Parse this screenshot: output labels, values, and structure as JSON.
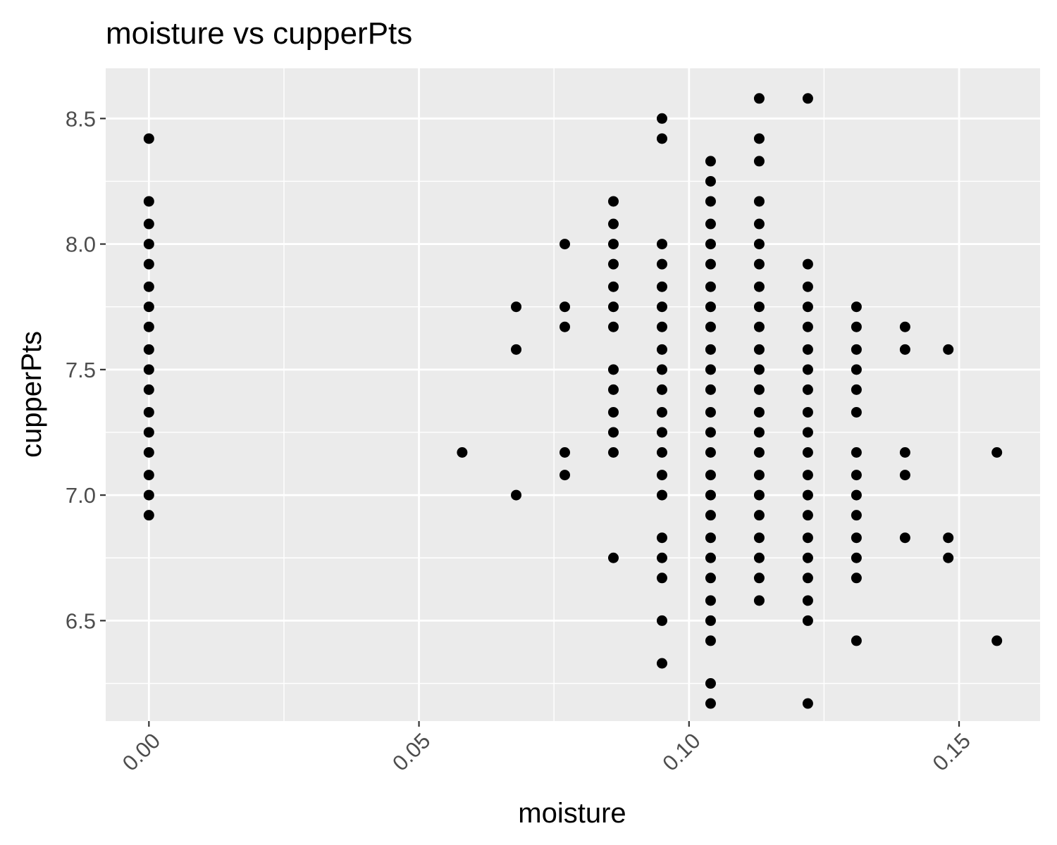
{
  "chart_data": {
    "type": "scatter",
    "title": "moisture vs cupperPts",
    "xlabel": "moisture",
    "ylabel": "cupperPts",
    "xlim": [
      -0.008,
      0.165
    ],
    "ylim": [
      6.1,
      8.7
    ],
    "x_ticks": [
      0.0,
      0.05,
      0.1,
      0.15
    ],
    "x_tick_labels": [
      "0.00",
      "0.05",
      "0.10",
      "0.15"
    ],
    "y_ticks": [
      6.5,
      7.0,
      7.5,
      8.0,
      8.5
    ],
    "y_tick_labels": [
      "6.5",
      "7.0",
      "7.5",
      "8.0",
      "8.5"
    ],
    "x_tick_rotation_deg": 45,
    "grid": true,
    "panel_background": "#ebebeb",
    "grid_color": "#ffffff",
    "point_color": "#000000",
    "columns": [
      {
        "x": 0.0,
        "y": [
          8.42,
          8.17,
          8.08,
          8.0,
          7.92,
          7.83,
          7.75,
          7.67,
          7.58,
          7.5,
          7.42,
          7.33,
          7.25,
          7.17,
          7.08,
          7.0,
          6.92
        ]
      },
      {
        "x": 0.058,
        "y": [
          7.17
        ]
      },
      {
        "x": 0.068,
        "y": [
          7.75,
          7.58,
          7.0
        ]
      },
      {
        "x": 0.077,
        "y": [
          8.0,
          7.75,
          7.67,
          7.17,
          7.08
        ]
      },
      {
        "x": 0.086,
        "y": [
          8.17,
          8.08,
          8.0,
          7.92,
          7.83,
          7.75,
          7.67,
          7.5,
          7.42,
          7.33,
          7.25,
          7.17,
          6.75
        ]
      },
      {
        "x": 0.095,
        "y": [
          8.5,
          8.42,
          8.0,
          7.92,
          7.83,
          7.75,
          7.67,
          7.58,
          7.5,
          7.42,
          7.33,
          7.25,
          7.17,
          7.08,
          7.0,
          6.83,
          6.75,
          6.67,
          6.5,
          6.33
        ]
      },
      {
        "x": 0.104,
        "y": [
          8.33,
          8.25,
          8.17,
          8.08,
          8.0,
          7.92,
          7.83,
          7.75,
          7.67,
          7.58,
          7.5,
          7.42,
          7.33,
          7.25,
          7.17,
          7.08,
          7.0,
          6.92,
          6.83,
          6.75,
          6.67,
          6.58,
          6.5,
          6.42,
          6.25,
          6.17
        ]
      },
      {
        "x": 0.113,
        "y": [
          8.58,
          8.42,
          8.33,
          8.17,
          8.08,
          8.0,
          7.92,
          7.83,
          7.75,
          7.67,
          7.58,
          7.5,
          7.42,
          7.33,
          7.25,
          7.17,
          7.08,
          7.0,
          6.92,
          6.83,
          6.75,
          6.67,
          6.58
        ]
      },
      {
        "x": 0.122,
        "y": [
          8.58,
          7.92,
          7.83,
          7.75,
          7.67,
          7.58,
          7.5,
          7.42,
          7.33,
          7.25,
          7.17,
          7.08,
          7.0,
          6.92,
          6.83,
          6.75,
          6.67,
          6.58,
          6.5,
          6.17
        ]
      },
      {
        "x": 0.131,
        "y": [
          7.75,
          7.67,
          7.58,
          7.5,
          7.42,
          7.33,
          7.17,
          7.08,
          7.0,
          6.92,
          6.83,
          6.75,
          6.67,
          6.42
        ]
      },
      {
        "x": 0.14,
        "y": [
          7.67,
          7.58,
          7.17,
          7.08,
          6.83
        ]
      },
      {
        "x": 0.148,
        "y": [
          7.58,
          6.83,
          6.75
        ]
      },
      {
        "x": 0.157,
        "y": [
          7.17,
          6.42
        ]
      }
    ]
  }
}
